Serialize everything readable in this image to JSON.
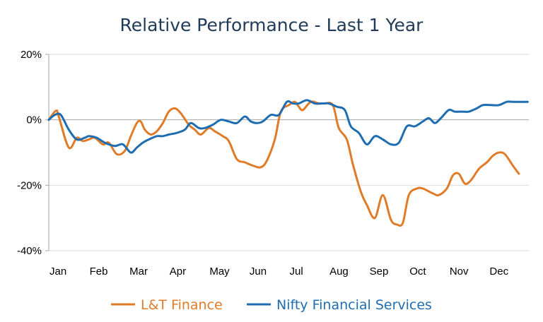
{
  "chart_data": {
    "type": "line",
    "title": "Relative Performance - Last 1 Year",
    "xlabel": "",
    "ylabel": "",
    "ylim": [
      -40,
      20
    ],
    "yticks": [
      20,
      0,
      -20,
      -40
    ],
    "ytick_labels": [
      "20%",
      "0%",
      "-20%",
      "-40%"
    ],
    "xlim": [
      0,
      12
    ],
    "categories": [
      "Jan",
      "Feb",
      "Mar",
      "Apr",
      "May",
      "Jun",
      "Jul",
      "Aug",
      "Sep",
      "Oct",
      "Nov",
      "Dec"
    ],
    "grid": true,
    "legend_position": "bottom",
    "series": [
      {
        "name": "L&T Finance",
        "color": "#e07b28",
        "x": [
          0,
          0.18,
          0.25,
          0.5,
          0.7,
          0.85,
          1.0,
          1.15,
          1.35,
          1.5,
          1.7,
          1.9,
          2.05,
          2.2,
          2.3,
          2.4,
          2.55,
          2.7,
          2.85,
          3.0,
          3.15,
          3.3,
          3.5,
          3.65,
          3.8,
          4.0,
          4.15,
          4.35,
          4.5,
          4.7,
          4.9,
          5.1,
          5.3,
          5.45,
          5.65,
          5.8,
          6.0,
          6.15,
          6.25,
          6.35,
          6.55,
          6.75,
          6.9,
          7.1,
          7.25,
          7.45,
          7.6,
          7.8,
          7.95,
          8.15,
          8.35,
          8.55,
          8.7,
          8.85,
          9.0,
          9.2,
          9.35,
          9.6,
          9.75,
          9.95,
          10.1,
          10.25,
          10.4,
          10.55,
          10.75,
          10.95,
          11.1,
          11.25,
          11.4,
          11.6,
          11.75
        ],
        "values": [
          0,
          2.8,
          1,
          -8.5,
          -5.5,
          -6.5,
          -6,
          -5.5,
          -7.5,
          -7,
          -10.5,
          -9.5,
          -5,
          -1,
          -0.5,
          -3,
          -4.5,
          -3.5,
          -1,
          2.5,
          3.5,
          2,
          -1.5,
          -3,
          -4.5,
          -2.5,
          -3.5,
          -5,
          -6.5,
          -12,
          -13,
          -14,
          -14.5,
          -12.5,
          -6,
          2.5,
          4.5,
          5.5,
          4,
          3,
          5.5,
          5,
          5,
          4.5,
          -2.5,
          -6,
          -13.5,
          -22,
          -26,
          -30,
          -23,
          -30.5,
          -32,
          -31.5,
          -23,
          -21,
          -21,
          -22.5,
          -23,
          -21,
          -17,
          -16.5,
          -19.5,
          -18.5,
          -15,
          -13,
          -11,
          -10,
          -10.5,
          -14,
          -16.5
        ]
      },
      {
        "name": "Nifty Financial Services",
        "color": "#1f6db1",
        "x": [
          0,
          0.15,
          0.3,
          0.5,
          0.7,
          0.9,
          1.0,
          1.2,
          1.4,
          1.65,
          1.85,
          2.05,
          2.2,
          2.35,
          2.5,
          2.7,
          2.85,
          3.0,
          3.2,
          3.4,
          3.55,
          3.75,
          3.9,
          4.1,
          4.3,
          4.5,
          4.7,
          4.9,
          5.05,
          5.2,
          5.35,
          5.55,
          5.75,
          5.95,
          6.1,
          6.25,
          6.45,
          6.65,
          6.85,
          7.0,
          7.2,
          7.4,
          7.55,
          7.75,
          7.95,
          8.15,
          8.35,
          8.55,
          8.75,
          8.95,
          9.15,
          9.35,
          9.5,
          9.65,
          9.8,
          10.0,
          10.15,
          10.35,
          10.5,
          10.7,
          10.85,
          11.05,
          11.25,
          11.45,
          11.6,
          11.8,
          11.97
        ],
        "values": [
          0,
          1.5,
          1.5,
          -3,
          -6,
          -5.5,
          -5,
          -5.5,
          -7,
          -8,
          -7.5,
          -10,
          -8.5,
          -7,
          -6,
          -5,
          -5,
          -4.5,
          -4,
          -3,
          -1,
          -2.5,
          -2.5,
          -1.5,
          0,
          -0.5,
          -1,
          1,
          -0.5,
          -1,
          -0.5,
          1.5,
          1.5,
          5.5,
          5,
          5,
          6,
          5,
          5,
          5,
          4,
          3,
          -2,
          -4,
          -7.5,
          -5,
          -6,
          -7.5,
          -7,
          -2,
          -2,
          -0.5,
          0.5,
          -1,
          0.5,
          3,
          2.5,
          2.5,
          2.5,
          3.5,
          4.5,
          4.5,
          4.5,
          5.5,
          5.5,
          5.5,
          5.5
        ]
      }
    ]
  }
}
